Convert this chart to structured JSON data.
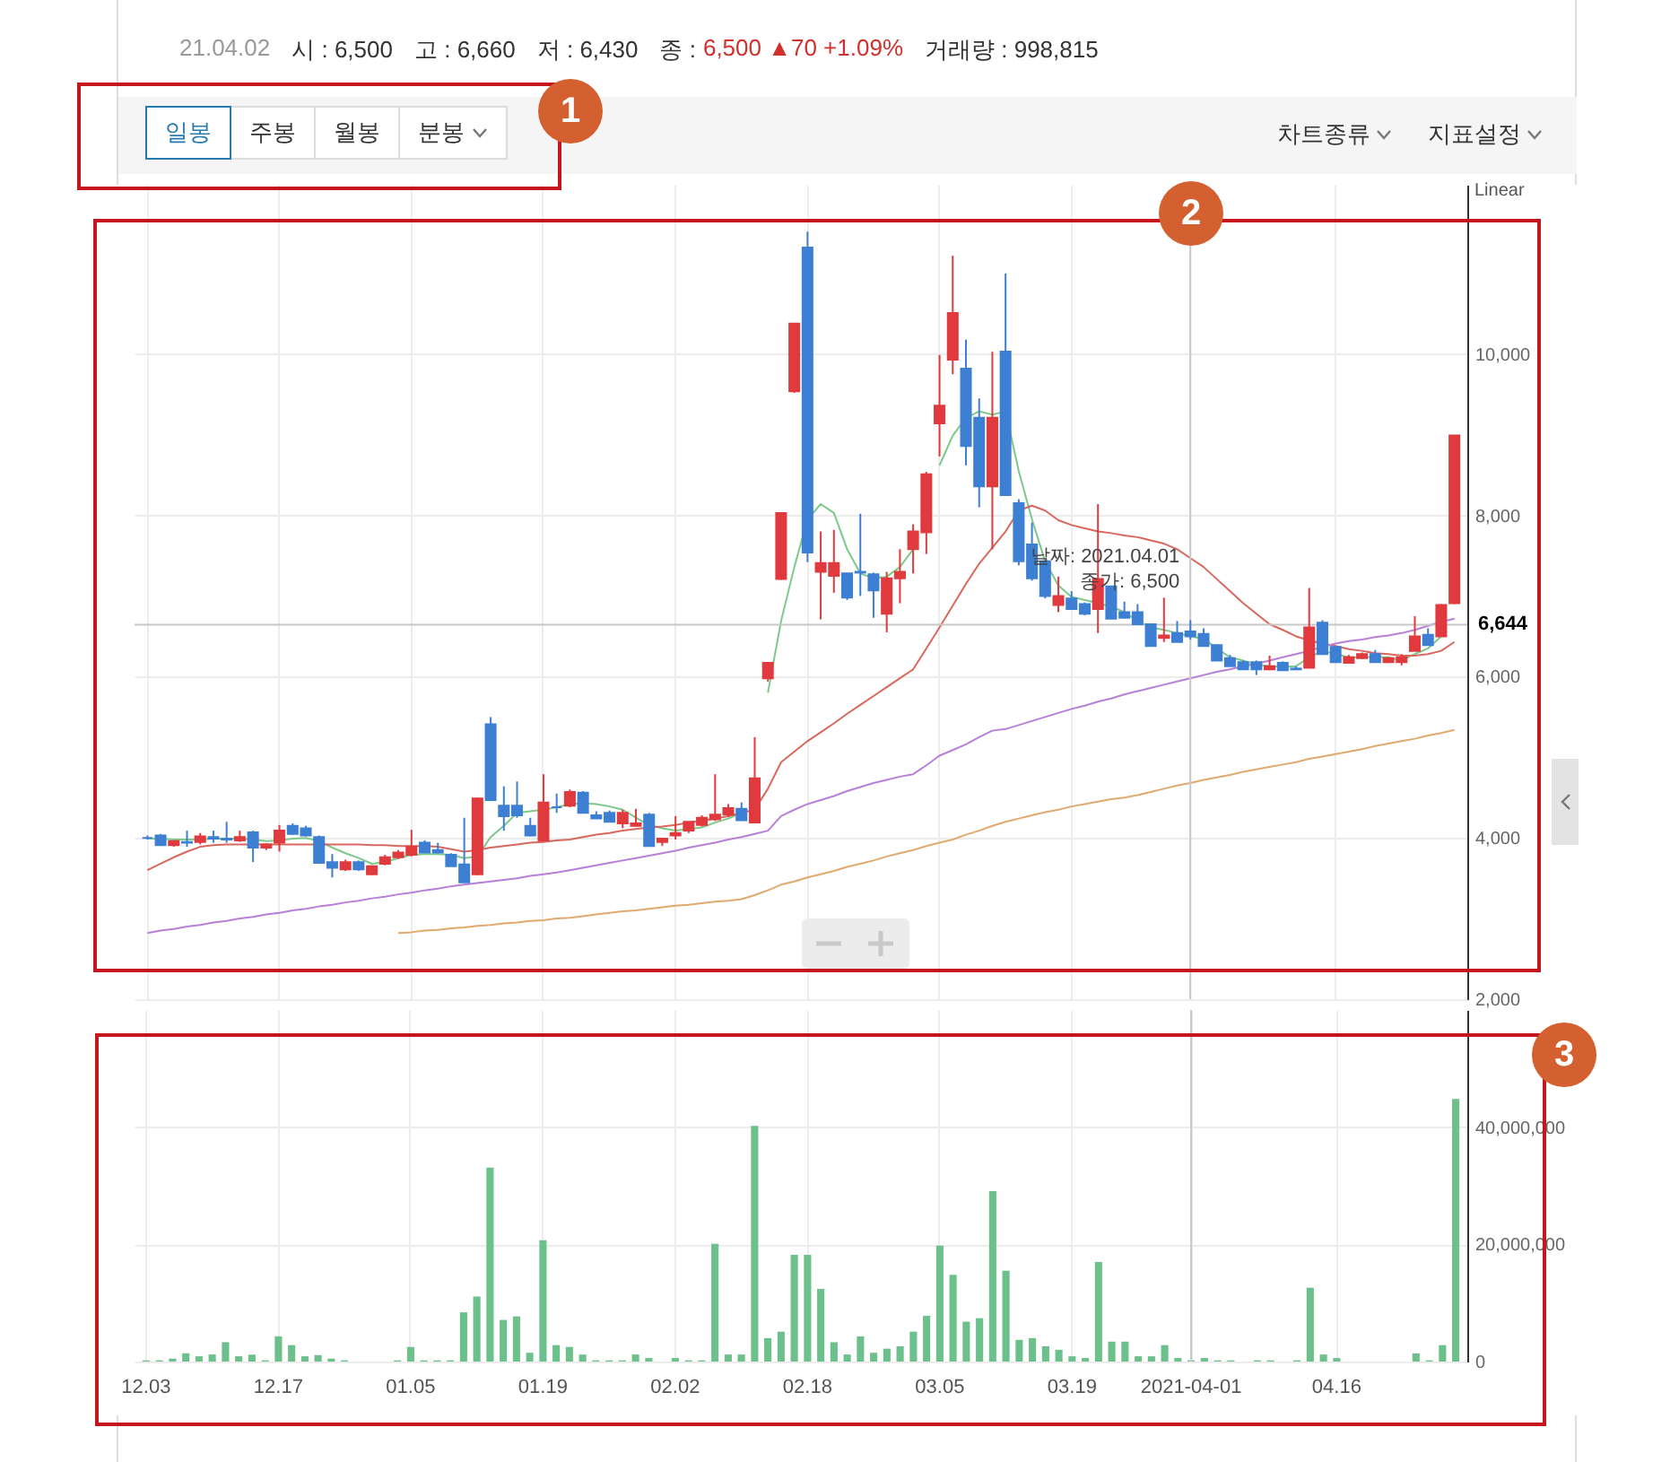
{
  "chart_data": [
    {
      "type": "candlestick",
      "categories": [
        "12.03",
        null,
        null,
        null,
        null,
        null,
        null,
        null,
        null,
        null,
        "12.17",
        null,
        null,
        null,
        null,
        null,
        null,
        null,
        null,
        null,
        "01.05",
        null,
        null,
        null,
        null,
        null,
        null,
        null,
        null,
        null,
        "01.19",
        null,
        null,
        null,
        null,
        null,
        null,
        null,
        null,
        null,
        "02.02",
        null,
        null,
        null,
        null,
        null,
        null,
        null,
        null,
        null,
        "02.18",
        null,
        null,
        null,
        null,
        null,
        null,
        null,
        null,
        null,
        "03.05",
        null,
        null,
        null,
        null,
        null,
        null,
        null,
        null,
        null,
        "03.19",
        null,
        null,
        null,
        null,
        null,
        null,
        null,
        null,
        "2021-04-01",
        null,
        null,
        null,
        null,
        null,
        null,
        null,
        null,
        null,
        null,
        "04.16",
        null,
        null,
        null,
        null,
        null,
        null,
        null,
        null,
        null
      ],
      "ohlc": [
        [
          4000,
          4030,
          3980,
          4000
        ],
        [
          4030,
          4050,
          3900,
          3910
        ],
        [
          3910,
          3970,
          3890,
          3960
        ],
        [
          3950,
          4090,
          3890,
          3940
        ],
        [
          3950,
          4060,
          3920,
          4020
        ],
        [
          4010,
          4090,
          3940,
          3990
        ],
        [
          3990,
          4200,
          3940,
          3980
        ],
        [
          3970,
          4090,
          3950,
          4010
        ],
        [
          4070,
          4090,
          3700,
          3880
        ],
        [
          3880,
          3930,
          3850,
          3920
        ],
        [
          3940,
          4160,
          3830,
          4090
        ],
        [
          4150,
          4180,
          4040,
          4050
        ],
        [
          4120,
          4150,
          4020,
          4030
        ],
        [
          4010,
          4030,
          3690,
          3690
        ],
        [
          3700,
          3800,
          3510,
          3630
        ],
        [
          3610,
          3730,
          3590,
          3700
        ],
        [
          3700,
          3720,
          3590,
          3610
        ],
        [
          3550,
          3660,
          3540,
          3650
        ],
        [
          3680,
          3790,
          3660,
          3760
        ],
        [
          3760,
          3850,
          3740,
          3820
        ],
        [
          3790,
          4100,
          3770,
          3890
        ],
        [
          3940,
          3970,
          3820,
          3820
        ],
        [
          3850,
          3940,
          3810,
          3820
        ],
        [
          3790,
          3810,
          3650,
          3650
        ],
        [
          3670,
          4250,
          3450,
          3450
        ],
        [
          3550,
          4500,
          3540,
          4490
        ],
        [
          5410,
          5500,
          4470,
          4470
        ],
        [
          4400,
          4640,
          4090,
          4270
        ],
        [
          4400,
          4700,
          4250,
          4280
        ],
        [
          4150,
          4250,
          4020,
          4030
        ],
        [
          3970,
          4790,
          3960,
          4440
        ],
        [
          4380,
          4550,
          4310,
          4380
        ],
        [
          4400,
          4600,
          4380,
          4570
        ],
        [
          4560,
          4580,
          4310,
          4310
        ],
        [
          4280,
          4330,
          4240,
          4240
        ],
        [
          4310,
          4340,
          4200,
          4200
        ],
        [
          4180,
          4350,
          4120,
          4310
        ],
        [
          4150,
          4360,
          4140,
          4180
        ],
        [
          4290,
          4310,
          3900,
          3900
        ],
        [
          3950,
          4000,
          3900,
          3990
        ],
        [
          4030,
          4270,
          3980,
          4060
        ],
        [
          4090,
          4200,
          4060,
          4200
        ],
        [
          4160,
          4280,
          4140,
          4250
        ],
        [
          4230,
          4790,
          4210,
          4290
        ],
        [
          4290,
          4420,
          4260,
          4370
        ],
        [
          4360,
          4440,
          4220,
          4220
        ],
        [
          4190,
          5250,
          4190,
          4740
        ],
        [
          5980,
          6170,
          5940,
          6170
        ],
        [
          7210,
          8030,
          7200,
          8030
        ],
        [
          9540,
          10380,
          9520,
          10380
        ],
        [
          11320,
          11520,
          7420,
          7540
        ],
        [
          7300,
          7800,
          6710,
          7410
        ],
        [
          7250,
          7820,
          7040,
          7410
        ],
        [
          7280,
          7280,
          6950,
          6980
        ],
        [
          7300,
          8020,
          7000,
          7290
        ],
        [
          7270,
          7290,
          6730,
          7070
        ],
        [
          6780,
          7300,
          6550,
          7220
        ],
        [
          7220,
          7580,
          6910,
          7300
        ],
        [
          7580,
          7890,
          7280,
          7800
        ],
        [
          7790,
          8540,
          7520,
          8510
        ],
        [
          9140,
          9990,
          8730,
          9360
        ],
        [
          9930,
          11220,
          9750,
          10510
        ],
        [
          9820,
          10180,
          8620,
          8860
        ],
        [
          9210,
          9450,
          8100,
          8360
        ],
        [
          8360,
          10030,
          7580,
          9210
        ],
        [
          10030,
          11000,
          8250,
          8250
        ],
        [
          8150,
          8200,
          7380,
          7430
        ],
        [
          7640,
          7910,
          7190,
          7220
        ],
        [
          7430,
          7430,
          6970,
          7000
        ],
        [
          6890,
          7240,
          6800,
          7000
        ],
        [
          6970,
          7060,
          6830,
          6840
        ],
        [
          6900,
          6920,
          6760,
          6780
        ],
        [
          6840,
          8140,
          6540,
          7210
        ],
        [
          7120,
          7120,
          6720,
          6720
        ],
        [
          6800,
          6930,
          6720,
          6730
        ],
        [
          6800,
          6900,
          6650,
          6650
        ],
        [
          6650,
          6650,
          6380,
          6380
        ],
        [
          6480,
          6980,
          6430,
          6510
        ],
        [
          6540,
          6690,
          6430,
          6430
        ],
        [
          6560,
          6700,
          6460,
          6500
        ],
        [
          6530,
          6600,
          6380,
          6380
        ],
        [
          6390,
          6390,
          6200,
          6200
        ],
        [
          6230,
          6270,
          6130,
          6130
        ],
        [
          6180,
          6200,
          6090,
          6090
        ],
        [
          6180,
          6200,
          6020,
          6090
        ],
        [
          6090,
          6260,
          6080,
          6130
        ],
        [
          6170,
          6190,
          6080,
          6080
        ],
        [
          6100,
          6130,
          6090,
          6090
        ],
        [
          6110,
          7100,
          6110,
          6610
        ],
        [
          6670,
          6700,
          6280,
          6280
        ],
        [
          6370,
          6370,
          6180,
          6180
        ],
        [
          6170,
          6270,
          6160,
          6240
        ],
        [
          6230,
          6300,
          6220,
          6280
        ],
        [
          6280,
          6330,
          6180,
          6180
        ],
        [
          6180,
          6240,
          6180,
          6230
        ],
        [
          6180,
          6280,
          6140,
          6240
        ],
        [
          6320,
          6750,
          6320,
          6500
        ],
        [
          6520,
          6600,
          6390,
          6390
        ],
        [
          6500,
          6900,
          6500,
          6890
        ],
        [
          6910,
          8990,
          6900,
          8990
        ]
      ],
      "colors": [
        "#3d7fd3",
        "#3d7fd3",
        "#e03a3e",
        "#3d7fd3",
        "#e03a3e",
        "#3d7fd3",
        "#3d7fd3",
        "#e03a3e",
        "#3d7fd3",
        "#e03a3e",
        "#e03a3e",
        "#3d7fd3",
        "#3d7fd3",
        "#3d7fd3",
        "#3d7fd3",
        "#e03a3e",
        "#3d7fd3",
        "#e03a3e",
        "#e03a3e",
        "#e03a3e",
        "#e03a3e",
        "#3d7fd3",
        "#3d7fd3",
        "#3d7fd3",
        "#3d7fd3",
        "#e03a3e",
        "#3d7fd3",
        "#3d7fd3",
        "#3d7fd3",
        "#3d7fd3",
        "#e03a3e",
        "#3d7fd3",
        "#e03a3e",
        "#3d7fd3",
        "#3d7fd3",
        "#3d7fd3",
        "#e03a3e",
        "#e03a3e",
        "#3d7fd3",
        "#e03a3e",
        "#e03a3e",
        "#e03a3e",
        "#e03a3e",
        "#e03a3e",
        "#e03a3e",
        "#3d7fd3",
        "#e03a3e",
        "#e03a3e",
        "#e03a3e",
        "#e03a3e",
        "#3d7fd3",
        "#e03a3e",
        "#e03a3e",
        "#3d7fd3",
        "#3d7fd3",
        "#3d7fd3",
        "#e03a3e",
        "#e03a3e",
        "#e03a3e",
        "#e03a3e",
        "#e03a3e",
        "#e03a3e",
        "#3d7fd3",
        "#3d7fd3",
        "#e03a3e",
        "#3d7fd3",
        "#3d7fd3",
        "#3d7fd3",
        "#3d7fd3",
        "#e03a3e",
        "#3d7fd3",
        "#3d7fd3",
        "#e03a3e",
        "#3d7fd3",
        "#3d7fd3",
        "#3d7fd3",
        "#3d7fd3",
        "#e03a3e",
        "#3d7fd3",
        "#3d7fd3",
        "#3d7fd3",
        "#3d7fd3",
        "#3d7fd3",
        "#3d7fd3",
        "#3d7fd3",
        "#e03a3e",
        "#3d7fd3",
        "#3d7fd3",
        "#e03a3e",
        "#3d7fd3",
        "#3d7fd3",
        "#e03a3e",
        "#e03a3e",
        "#3d7fd3",
        "#e03a3e",
        "#e03a3e",
        "#e03a3e",
        "#3d7fd3",
        "#e03a3e",
        "#e03a3e"
      ],
      "series": [
        {
          "type": "line",
          "color": "#7cc98a",
          "values": [
            3990,
            3990,
            3980,
            3980,
            3980,
            3990,
            3990,
            3990,
            3980,
            3960,
            3970,
            3990,
            4000,
            3960,
            3880,
            3810,
            3750,
            3680,
            3700,
            3750,
            3790,
            3800,
            3800,
            3790,
            3750,
            3770,
            4010,
            4150,
            4310,
            4330,
            4350,
            4380,
            4420,
            4430,
            4420,
            4390,
            4350,
            4250,
            4160,
            4120,
            4090,
            4110,
            4130,
            4190,
            4240,
            4310,
            null,
            5800,
            6690,
            7360,
            7950,
            8140,
            8030,
            7580,
            7280,
            7220,
            7240,
            7360,
            7580,
            null,
            8620,
            8990,
            9210,
            9290,
            9250,
            9290,
            8550,
            7950,
            7430,
            7130,
            6990,
            6950,
            6910,
            6870,
            6800,
            6690,
            6610,
            6580,
            6540,
            6500,
            6470,
            6350,
            6240,
            6200,
            6150,
            6130,
            6120,
            6130,
            6240,
            6320,
            6280,
            6240,
            6240,
            6240,
            6240,
            6200,
            6280,
            6350,
            6500,
            null
          ]
        },
        {
          "type": "line",
          "color": "#d9675d",
          "values": [
            3600,
            3680,
            3760,
            3830,
            3890,
            3910,
            3920,
            3920,
            3920,
            3920,
            3920,
            3920,
            3920,
            3920,
            3920,
            3920,
            3920,
            3910,
            3910,
            3900,
            3900,
            3900,
            3890,
            3860,
            3830,
            3850,
            3880,
            3900,
            3920,
            3940,
            3950,
            3970,
            3980,
            4010,
            4040,
            4060,
            4090,
            4110,
            4130,
            4140,
            4160,
            4190,
            4210,
            4240,
            4270,
            4310,
            4350,
            4610,
            4940,
            5070,
            5200,
            5310,
            5420,
            5540,
            5650,
            5760,
            5870,
            5980,
            6090,
            6350,
            6610,
            6880,
            7150,
            7400,
            7600,
            7800,
            8060,
            8120,
            8060,
            7940,
            7880,
            7840,
            7800,
            7780,
            7750,
            7730,
            7690,
            7650,
            7580,
            7470,
            7360,
            7210,
            7060,
            6910,
            6780,
            6650,
            6580,
            6500,
            6450,
            6410,
            6380,
            6340,
            6320,
            6290,
            6280,
            6260,
            6260,
            6280,
            6320,
            6430
          ]
        },
        {
          "type": "line",
          "color": "#b87fd9",
          "values": [
            2820,
            2850,
            2870,
            2900,
            2920,
            2950,
            2970,
            3000,
            3020,
            3050,
            3070,
            3100,
            3120,
            3150,
            3170,
            3200,
            3220,
            3250,
            3270,
            3300,
            3320,
            3350,
            3370,
            3400,
            3420,
            3440,
            3460,
            3480,
            3500,
            3530,
            3550,
            3570,
            3600,
            3630,
            3660,
            3690,
            3720,
            3750,
            3780,
            3810,
            3840,
            3880,
            3910,
            3940,
            3980,
            4010,
            4050,
            4090,
            4270,
            4350,
            4420,
            4470,
            4520,
            4580,
            4630,
            4680,
            4720,
            4760,
            4790,
            4900,
            5020,
            5090,
            5160,
            5250,
            5330,
            5350,
            5400,
            5450,
            5500,
            5550,
            5600,
            5640,
            5690,
            5730,
            5780,
            5820,
            5860,
            5900,
            5940,
            5980,
            6020,
            6060,
            6090,
            6130,
            6160,
            6200,
            6240,
            6280,
            6320,
            6370,
            6410,
            6440,
            6460,
            6490,
            6510,
            6540,
            6580,
            6630,
            6680,
            6720
          ]
        },
        {
          "type": "line",
          "color": "#e0aa6e",
          "values": [
            null,
            null,
            null,
            null,
            null,
            null,
            null,
            null,
            null,
            null,
            null,
            null,
            null,
            null,
            null,
            null,
            null,
            null,
            null,
            2820,
            2830,
            2850,
            2860,
            2880,
            2890,
            2910,
            2920,
            2940,
            2950,
            2970,
            2980,
            3000,
            3010,
            3030,
            3050,
            3070,
            3090,
            3100,
            3120,
            3140,
            3160,
            3170,
            3190,
            3210,
            3220,
            3240,
            3290,
            3350,
            3420,
            3460,
            3510,
            3550,
            3590,
            3640,
            3680,
            3720,
            3770,
            3810,
            3850,
            3900,
            3940,
            3980,
            4040,
            4090,
            4150,
            4200,
            4240,
            4280,
            4320,
            4350,
            4390,
            4420,
            4450,
            4480,
            4500,
            4530,
            4570,
            4610,
            4650,
            4680,
            4720,
            4750,
            4780,
            4820,
            4850,
            4880,
            4910,
            4940,
            4980,
            5010,
            5040,
            5070,
            5100,
            5140,
            5170,
            5200,
            5230,
            5270,
            5300,
            5340
          ]
        }
      ],
      "ylim": [
        2000,
        12100
      ],
      "yticks": [
        {
          "value": 2000,
          "label": "2,000"
        },
        {
          "value": 4000,
          "label": "4,000"
        },
        {
          "value": 6000,
          "label": "6,000"
        },
        {
          "value": 8000,
          "label": "8,000"
        },
        {
          "value": 10000,
          "label": "10,000"
        }
      ],
      "grid": true,
      "tick_labels": "y",
      "ref_lines": [
        {
          "axis": "x",
          "value": "2021-04-01",
          "color": "#c8c8c8"
        },
        {
          "axis": "y",
          "value": 6644,
          "label": "6,644",
          "color": "#c8c8c8"
        }
      ],
      "annotations": [
        "21.04.02",
        "시 : 6,500",
        "고 : 6,660",
        "저 : 6,430",
        "종 :",
        "6,500 ▲70 +1.09%",
        "거래량 : 998,815",
        "일봉",
        "주봉",
        "월봉",
        "분봉",
        "차트종류",
        "지표설정",
        "Linear",
        "1",
        "2",
        "3",
        {
          "text": "날짜: 2021.04.01\n종가: 6,500",
          "x": "2021-04-01",
          "y": 6500
        }
      ]
    },
    {
      "type": "bar",
      "categories": [
        "12.03",
        null,
        null,
        null,
        null,
        null,
        null,
        null,
        null,
        null,
        "12.17",
        null,
        null,
        null,
        null,
        null,
        null,
        null,
        null,
        null,
        "01.05",
        null,
        null,
        null,
        null,
        null,
        null,
        null,
        null,
        null,
        "01.19",
        null,
        null,
        null,
        null,
        null,
        null,
        null,
        null,
        null,
        "02.02",
        null,
        null,
        null,
        null,
        null,
        null,
        null,
        null,
        null,
        "02.18",
        null,
        null,
        null,
        null,
        null,
        null,
        null,
        null,
        null,
        "03.05",
        null,
        null,
        null,
        null,
        null,
        null,
        null,
        null,
        null,
        "03.19",
        null,
        null,
        null,
        null,
        null,
        null,
        null,
        null,
        "2021-04-01",
        null,
        null,
        null,
        null,
        null,
        null,
        null,
        null,
        null,
        null,
        "04.16",
        null,
        null,
        null,
        null,
        null,
        null,
        null,
        null,
        null
      ],
      "values": [
        200000,
        200000,
        500000,
        1400000,
        900000,
        1200000,
        3300000,
        900000,
        1200000,
        200000,
        4300000,
        2800000,
        900000,
        1100000,
        500000,
        200000,
        0,
        0,
        0,
        200000,
        2500000,
        200000,
        200000,
        200000,
        8400000,
        11100000,
        33100000,
        7100000,
        7700000,
        1500000,
        20700000,
        2800000,
        2500000,
        1200000,
        200000,
        200000,
        200000,
        1200000,
        600000,
        0,
        600000,
        200000,
        200000,
        20100000,
        1200000,
        1200000,
        40200000,
        4000000,
        5100000,
        18200000,
        18200000,
        12400000,
        3300000,
        1200000,
        4300000,
        1500000,
        2200000,
        2600000,
        5100000,
        7800000,
        19800000,
        14800000,
        6800000,
        7400000,
        29100000,
        15500000,
        3700000,
        4000000,
        2600000,
        2000000,
        900000,
        600000,
        17000000,
        3400000,
        3400000,
        900000,
        900000,
        2800000,
        600000,
        200000,
        600000,
        200000,
        200000,
        0,
        200000,
        200000,
        0,
        200000,
        12600000,
        1200000,
        600000,
        0,
        0,
        0,
        0,
        0,
        1400000,
        200000,
        2800000,
        44800000
      ],
      "color": "#6cc08b",
      "ylim": [
        0,
        60000000
      ],
      "yticks": [
        0,
        {
          "value": 20000000,
          "label": "20,000,000"
        },
        {
          "value": 40000000,
          "label": "40,000,000"
        }
      ],
      "grid": true,
      "ref_lines": [
        {
          "axis": "x",
          "value": "2021-04-01",
          "color": "#c8c8c8"
        }
      ]
    }
  ]
}
